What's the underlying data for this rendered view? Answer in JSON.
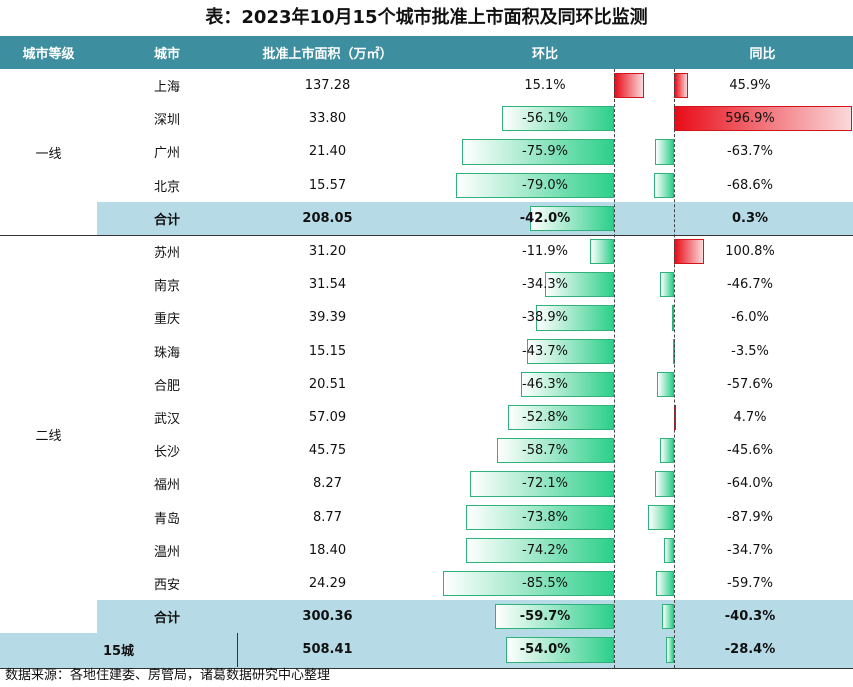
{
  "title": "表：2023年10月15个城市批准上市面积及同环比监测",
  "headers": [
    "城市等级",
    "城市",
    "批准上市面积（万㎡）",
    "环比",
    "同比"
  ],
  "groups": [
    {
      "tier": "一线",
      "rows": [
        {
          "city": "上海",
          "area": "137.28",
          "mom": "15.1%",
          "yoy": "45.9%"
        },
        {
          "city": "深圳",
          "area": "33.80",
          "mom": "-56.1%",
          "yoy": "596.9%"
        },
        {
          "city": "广州",
          "area": "21.40",
          "mom": "-75.9%",
          "yoy": "-63.7%"
        },
        {
          "city": "北京",
          "area": "15.57",
          "mom": "-79.0%",
          "yoy": "-68.6%"
        }
      ],
      "subtotal": {
        "label": "合计",
        "area": "208.05",
        "mom": "-42.0%",
        "yoy": "0.3%"
      }
    },
    {
      "tier": "二线",
      "rows": [
        {
          "city": "苏州",
          "area": "31.20",
          "mom": "-11.9%",
          "yoy": "100.8%"
        },
        {
          "city": "南京",
          "area": "31.54",
          "mom": "-34.3%",
          "yoy": "-46.7%"
        },
        {
          "city": "重庆",
          "area": "39.39",
          "mom": "-38.9%",
          "yoy": "-6.0%"
        },
        {
          "city": "珠海",
          "area": "15.15",
          "mom": "-43.7%",
          "yoy": "-3.5%"
        },
        {
          "city": "合肥",
          "area": "20.51",
          "mom": "-46.3%",
          "yoy": "-57.6%"
        },
        {
          "city": "武汉",
          "area": "57.09",
          "mom": "-52.8%",
          "yoy": "4.7%"
        },
        {
          "city": "长沙",
          "area": "45.75",
          "mom": "-58.7%",
          "yoy": "-45.6%"
        },
        {
          "city": "福州",
          "area": "8.27",
          "mom": "-72.1%",
          "yoy": "-64.0%"
        },
        {
          "city": "青岛",
          "area": "8.77",
          "mom": "-73.8%",
          "yoy": "-87.9%"
        },
        {
          "city": "温州",
          "area": "18.40",
          "mom": "-74.2%",
          "yoy": "-34.7%"
        },
        {
          "city": "西安",
          "area": "24.29",
          "mom": "-85.5%",
          "yoy": "-59.7%"
        }
      ],
      "subtotal": {
        "label": "合计",
        "area": "300.36",
        "mom": "-59.7%",
        "yoy": "-40.3%"
      }
    }
  ],
  "grand_total": {
    "label": "15城",
    "area": "508.41",
    "mom": "-54.0%",
    "yoy": "-28.4%"
  },
  "footnote": "数据来源：各地住建委、房管局，诸葛数据研究中心整理",
  "colors": {
    "header": "#3d8e9f",
    "subtotal": "#b6dbe7",
    "negative_bar": "#2bd08a",
    "positive_bar": "#e80c18"
  }
}
